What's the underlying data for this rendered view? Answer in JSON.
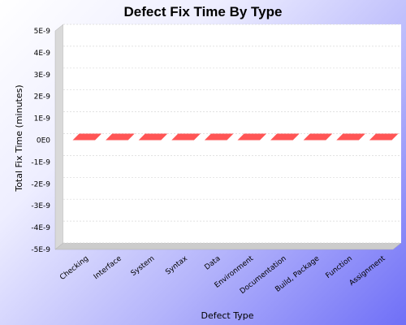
{
  "chart_data": {
    "type": "bar",
    "title": "Defect Fix Time By Type",
    "xlabel": "Defect Type",
    "ylabel": "Total Fix Time (minutes)",
    "categories": [
      "Checking",
      "Interface",
      "System",
      "Syntax",
      "Data",
      "Environment",
      "Documentation",
      "Build, Package",
      "Function",
      "Assignment"
    ],
    "values": [
      0,
      0,
      0,
      0,
      0,
      0,
      0,
      0,
      0,
      0
    ],
    "ylim": [
      -5e-09,
      5e-09
    ],
    "yticks": [
      {
        "value": 5e-09,
        "label": "5E-9"
      },
      {
        "value": 4e-09,
        "label": "4E-9"
      },
      {
        "value": 3e-09,
        "label": "3E-9"
      },
      {
        "value": 2e-09,
        "label": "2E-9"
      },
      {
        "value": 1e-09,
        "label": "1E-9"
      },
      {
        "value": 0,
        "label": "0E0"
      },
      {
        "value": -1e-09,
        "label": "-1E-9"
      },
      {
        "value": -2e-09,
        "label": "-2E-9"
      },
      {
        "value": -3e-09,
        "label": "-3E-9"
      },
      {
        "value": -4e-09,
        "label": "-4E-9"
      },
      {
        "value": -5e-09,
        "label": "-5E-9"
      }
    ],
    "grid": true,
    "bar_color": "#ff5555"
  }
}
